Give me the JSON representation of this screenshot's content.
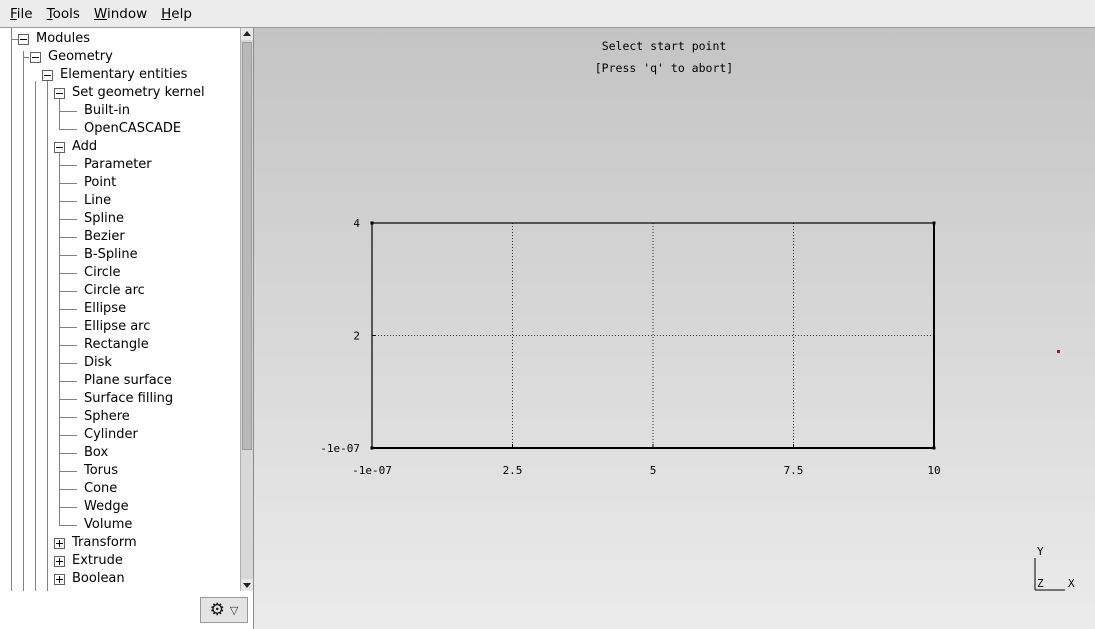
{
  "menubar": {
    "items": [
      {
        "mnemonic": "F",
        "rest": "ile"
      },
      {
        "mnemonic": "T",
        "rest": "ools"
      },
      {
        "mnemonic": "W",
        "rest": "indow"
      },
      {
        "mnemonic": "H",
        "rest": "elp"
      }
    ]
  },
  "tree": {
    "modules": "Modules",
    "geometry": "Geometry",
    "elementary": "Elementary entities",
    "kernel": "Set geometry kernel",
    "kernel_items": [
      "Built-in",
      "OpenCASCADE"
    ],
    "add": "Add",
    "add_items": [
      "Parameter",
      "Point",
      "Line",
      "Spline",
      "Bezier",
      "B-Spline",
      "Circle",
      "Circle arc",
      "Ellipse",
      "Ellipse arc",
      "Rectangle",
      "Disk",
      "Plane surface",
      "Surface filling",
      "Sphere",
      "Cylinder",
      "Box",
      "Torus",
      "Cone",
      "Wedge",
      "Volume"
    ],
    "collapsed_items": [
      "Transform",
      "Extrude",
      "Boolean"
    ]
  },
  "gear_button": {
    "icon": "gear-icon",
    "dropdown_icon": "triangle-down-icon"
  },
  "graphics": {
    "message_line1": "Select start point",
    "message_line2": "[Press 'q' to abort]",
    "axes_triad": {
      "y": "Y",
      "z": "Z",
      "x": "X"
    },
    "point_color": "#e00000"
  },
  "chart_data": {
    "type": "scatter",
    "x_ticks": [
      -1e-07,
      2.5,
      5,
      7.5,
      10
    ],
    "x_tick_labels": [
      "-1e-07",
      "2.5",
      "5",
      "7.5",
      "10"
    ],
    "y_ticks": [
      -1e-07,
      2,
      4
    ],
    "y_tick_labels": [
      "-1e-07",
      "2",
      "4"
    ],
    "xlim": [
      -1e-07,
      10
    ],
    "ylim": [
      -1e-07,
      4
    ],
    "grid": true,
    "points": [
      {
        "x": -1e-07,
        "y": 4
      },
      {
        "x": 10,
        "y": 4
      },
      {
        "x": -1e-07,
        "y": -1e-07
      },
      {
        "x": 10,
        "y": -1e-07
      }
    ]
  }
}
